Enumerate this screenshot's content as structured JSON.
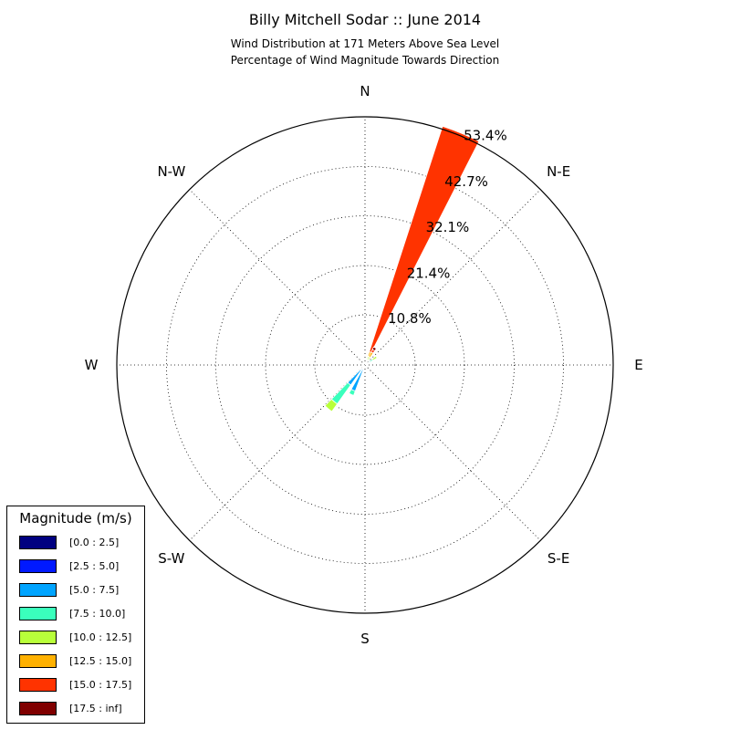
{
  "header": {
    "title": "Billy Mitchell Sodar :: June 2014",
    "subtitle_line1": "Wind Distribution at 171 Meters Above Sea Level",
    "subtitle_line2": "Percentage of Wind Magnitude Towards Direction"
  },
  "chart_data": {
    "type": "wind-rose",
    "title": "Billy Mitchell Sodar :: June 2014",
    "subtitle": "Wind Distribution at 171 Meters Above Sea Level / Percentage of Wind Magnitude Towards Direction",
    "directions": [
      "N",
      "N-E",
      "E",
      "S-E",
      "S",
      "S-W",
      "W",
      "N-W"
    ],
    "radial_ticks": [
      "10.8%",
      "21.4%",
      "32.1%",
      "42.7%",
      "53.4%"
    ],
    "radial_max": 53.4,
    "bins": [
      "[0.0 : 2.5]",
      "[2.5 : 5.0]",
      "[5.0 : 7.5]",
      "[7.5 : 10.0]",
      "[10.0 : 12.5]",
      "[12.5 : 15.0]",
      "[15.0 : 17.5]",
      "[17.5 : inf]"
    ],
    "colors": [
      "#000080",
      "#0019ff",
      "#00a4ff",
      "#3affbc",
      "#b8ff3a",
      "#ffb100",
      "#ff3300",
      "#800000"
    ],
    "sectors": [
      {
        "direction_deg": 22.5,
        "values": [
          0.2,
          0.3,
          0.4,
          0.5,
          0.6,
          1.0,
          51.0,
          0.0
        ]
      },
      {
        "direction_deg": 30.0,
        "values": [
          0.1,
          0.2,
          0.3,
          0.5,
          0.8,
          1.2,
          0.6,
          0.6
        ]
      },
      {
        "direction_deg": 55.0,
        "values": [
          0.2,
          0.3,
          0.5,
          1.0,
          1.0,
          0.0,
          0.0,
          0.0
        ]
      },
      {
        "direction_deg": 205.0,
        "values": [
          0.3,
          0.7,
          5.0,
          1.0,
          0.0,
          0.0,
          0.0,
          0.0
        ]
      },
      {
        "direction_deg": 220.0,
        "values": [
          0.3,
          1.0,
          4.0,
          5.0,
          2.0,
          0.0,
          0.0,
          0.0
        ]
      }
    ],
    "grid": true,
    "legend_position": "bottom-left"
  },
  "legend": {
    "title": "Magnitude (m/s)",
    "items": [
      {
        "label": "[0.0 : 2.5]",
        "color": "#000080"
      },
      {
        "label": "[2.5 : 5.0]",
        "color": "#0019ff"
      },
      {
        "label": "[5.0 : 7.5]",
        "color": "#00a4ff"
      },
      {
        "label": "[7.5 : 10.0]",
        "color": "#3affbc"
      },
      {
        "label": "[10.0 : 12.5]",
        "color": "#b8ff3a"
      },
      {
        "label": "[12.5 : 15.0]",
        "color": "#ffb100"
      },
      {
        "label": "[15.0 : 17.5]",
        "color": "#ff3300"
      },
      {
        "label": "[17.5 : inf]",
        "color": "#800000"
      }
    ]
  }
}
